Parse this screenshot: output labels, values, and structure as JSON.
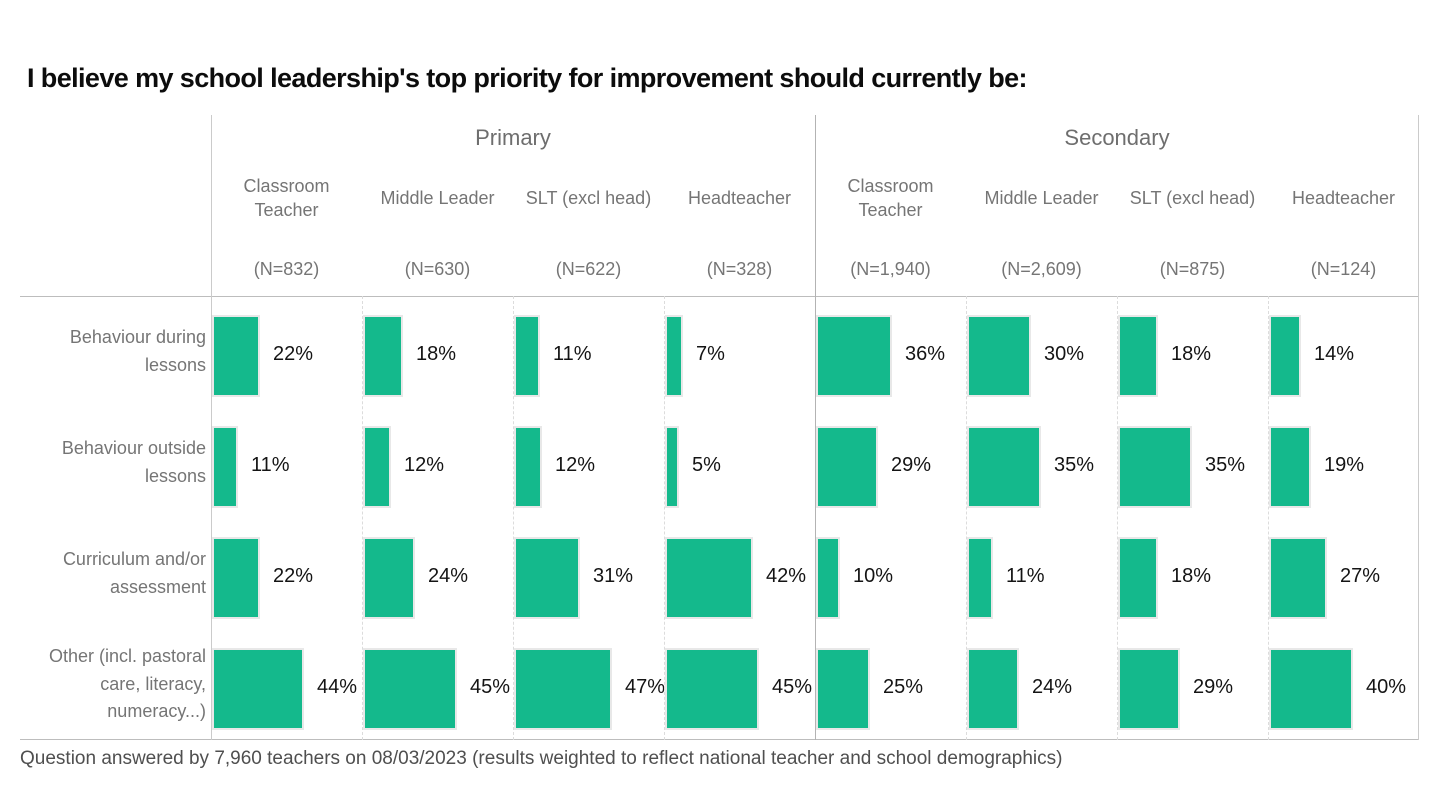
{
  "title": "I believe my school leadership's top priority for improvement should currently be:",
  "footer": "Question answered by 7,960 teachers on 08/03/2023 (results weighted to reflect national teacher and school demographics)",
  "colors": {
    "bar": "#14b98c",
    "bar_border": "#e8e8e8",
    "gray_text": "#757575",
    "value_text": "#141414"
  },
  "chart_data": {
    "type": "bar",
    "orientation": "horizontal",
    "title": "I believe my school leadership's top priority for improvement should currently be:",
    "value_suffix": "%",
    "xlim": [
      0,
      50
    ],
    "grid": "dashed column separators",
    "categories": [
      "Behaviour during lessons",
      "Behaviour outside lessons",
      "Curriculum and/or assessment",
      "Other (incl. pastoral care, literacy, numeracy...)"
    ],
    "groups": [
      {
        "label": "Primary",
        "columns": [
          {
            "label": "Classroom Teacher",
            "n": "(N=832)",
            "values": [
              22,
              11,
              22,
              44
            ]
          },
          {
            "label": "Middle Leader",
            "n": "(N=630)",
            "values": [
              18,
              12,
              24,
              45
            ]
          },
          {
            "label": "SLT (excl head)",
            "n": "(N=622)",
            "values": [
              11,
              12,
              31,
              47
            ]
          },
          {
            "label": "Headteacher",
            "n": "(N=328)",
            "values": [
              7,
              5,
              42,
              45
            ]
          }
        ]
      },
      {
        "label": "Secondary",
        "columns": [
          {
            "label": "Classroom Teacher",
            "n": "(N=1,940)",
            "values": [
              36,
              29,
              10,
              25
            ]
          },
          {
            "label": "Middle Leader",
            "n": "(N=2,609)",
            "values": [
              30,
              35,
              11,
              24
            ]
          },
          {
            "label": "SLT (excl head)",
            "n": "(N=875)",
            "values": [
              18,
              35,
              18,
              29
            ]
          },
          {
            "label": "Headteacher",
            "n": "(N=124)",
            "values": [
              14,
              19,
              27,
              40
            ]
          }
        ]
      }
    ]
  }
}
